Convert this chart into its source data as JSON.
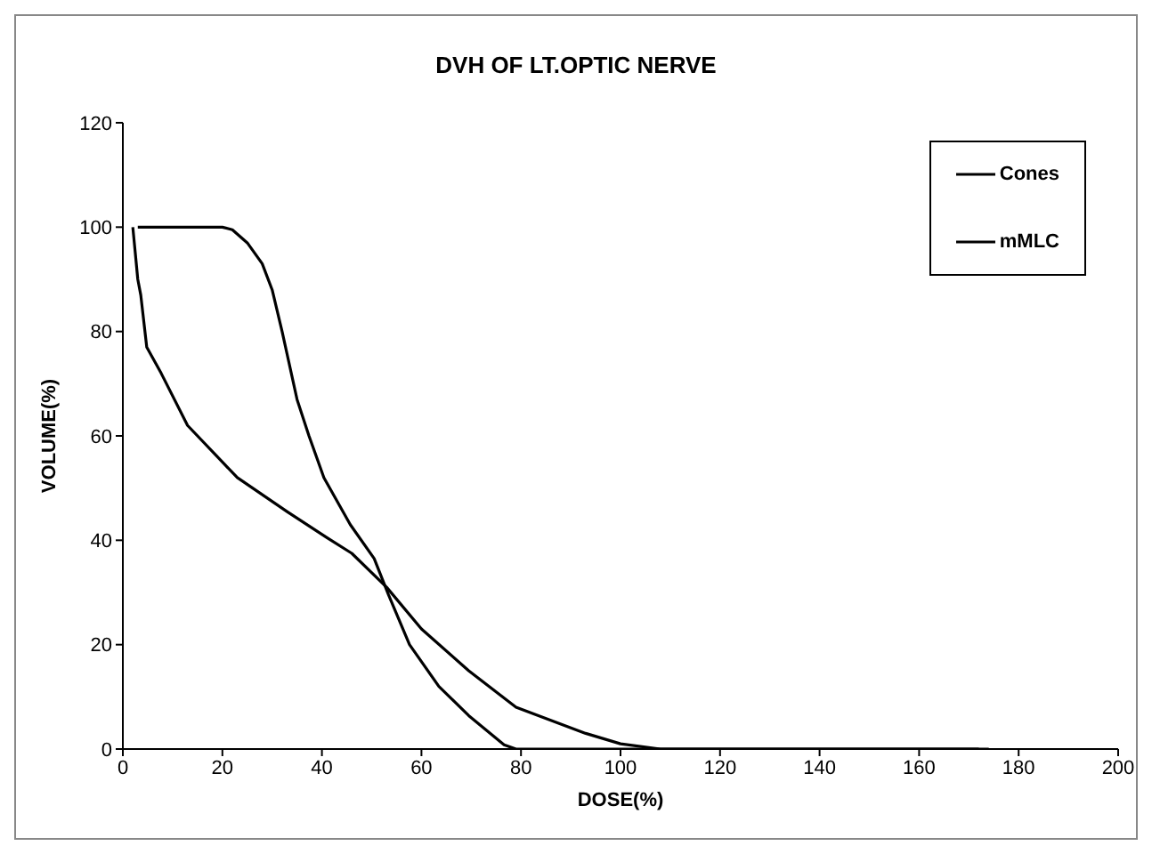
{
  "chart_data": {
    "type": "line",
    "title": "DVH OF LT.OPTIC NERVE",
    "xlabel": "DOSE(%)",
    "ylabel": "VOLUME(%)",
    "xlim": [
      0,
      200
    ],
    "xticks": [
      0,
      20,
      40,
      60,
      80,
      100,
      120,
      140,
      160,
      180,
      200
    ],
    "ylim": [
      0,
      120
    ],
    "yticks": [
      0,
      20,
      40,
      60,
      80,
      100,
      120
    ],
    "legend": "top right",
    "marker": "none",
    "line_style": "solid",
    "series": [
      {
        "name": "Cones",
        "color": "#000000",
        "x": [
          3,
          10,
          20,
          22,
          25,
          28,
          30,
          32,
          35,
          37.4,
          40.4,
          45.7,
          50.5,
          53.4,
          57.6,
          63.5,
          69.5,
          76.6,
          79,
          100,
          140,
          174
        ],
        "values": [
          100,
          100,
          100,
          99.5,
          97,
          93,
          88,
          80,
          67,
          60,
          52,
          43,
          36.5,
          29.5,
          20,
          12,
          6.4,
          0.8,
          0,
          0,
          0,
          0
        ]
      },
      {
        "name": "mMLC",
        "color": "#000000",
        "x": [
          2,
          2.5,
          3,
          3.6,
          4.8,
          7.7,
          13,
          23,
          33,
          41,
          46,
          53,
          60,
          69.5,
          79,
          93,
          100,
          108,
          140,
          172
        ],
        "values": [
          100,
          95,
          90,
          87,
          77,
          72,
          62,
          52,
          45.5,
          40.5,
          37.5,
          31,
          23,
          15,
          8,
          3,
          1,
          0,
          0,
          0
        ]
      }
    ]
  }
}
